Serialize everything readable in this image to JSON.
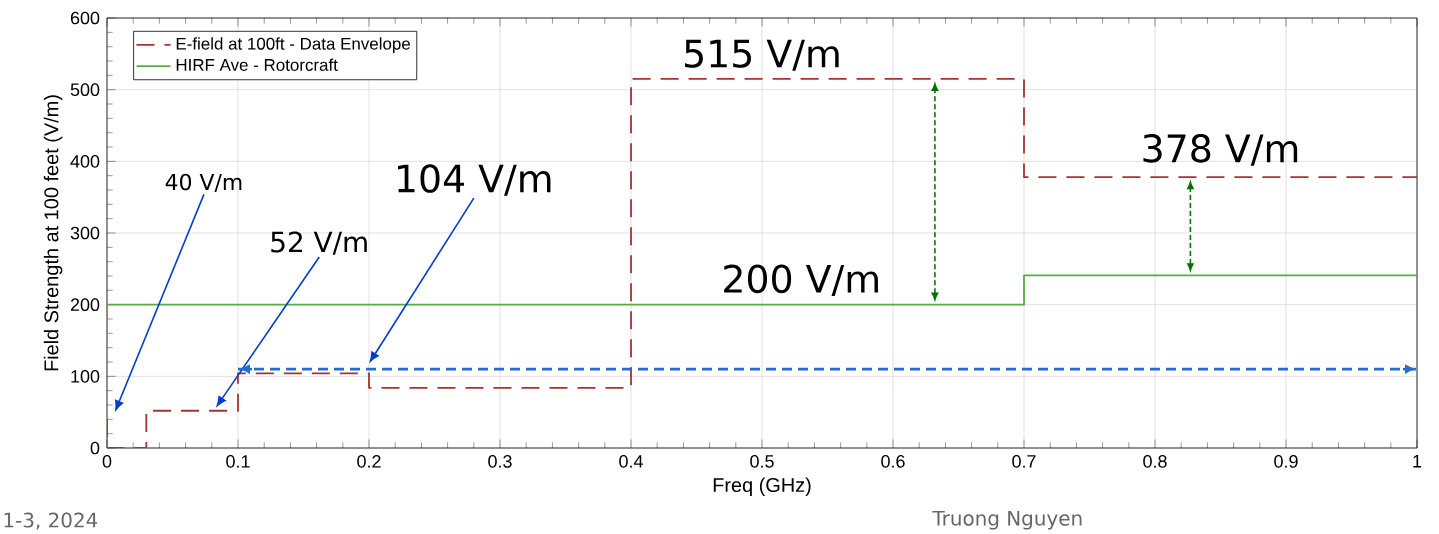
{
  "chart_data": {
    "type": "step",
    "xlabel": "Freq (GHz)",
    "ylabel": "Field Strength at 100 feet (V/m)",
    "series": [
      {
        "name": "E-field at 100ft - Data Envelope",
        "color": "#a83232",
        "line_style": "dashed",
        "x": [
          0,
          0,
          0.03,
          0.1,
          0.2,
          0.4,
          0.7,
          1.0
        ],
        "values": [
          40,
          0,
          52,
          104,
          84,
          515,
          378,
          378
        ]
      },
      {
        "name": "HIRF Ave - Rotorcraft",
        "color": "#5aa94a",
        "line_style": "solid",
        "x": [
          0,
          0,
          0.7,
          1.0
        ],
        "values": [
          150,
          200,
          241,
          241
        ]
      },
      {
        "type": "line",
        "color": "#1f6fd0",
        "line_style": "dashed",
        "x": [
          0.1,
          1.0
        ],
        "values": [
          110,
          110
        ]
      }
    ],
    "xlim": [
      0,
      1
    ],
    "ylim": [
      0,
      600
    ],
    "xticks": [
      0,
      0.1,
      0.2,
      0.3,
      0.4,
      0.5,
      0.6,
      0.7,
      0.8,
      0.9,
      1
    ],
    "yticks": [
      0,
      100,
      200,
      300,
      400,
      500,
      600
    ],
    "grid": true,
    "legend": "top left",
    "marker": "none",
    "annotations": [
      "40 V/m",
      "52 V/m",
      "104 V/m",
      {
        "text": "515 V/m",
        "x": 0.5,
        "y": 515
      },
      {
        "text": "378 V/m",
        "x": 0.85,
        "y": 378
      },
      {
        "text": "200 V/m",
        "x": 0.53,
        "y": 200
      },
      "1-3, 2024",
      "Truong Nguyen"
    ]
  }
}
